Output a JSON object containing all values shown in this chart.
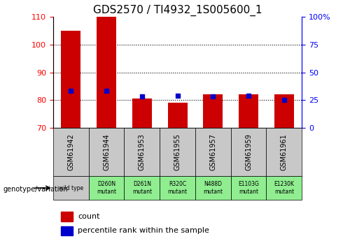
{
  "title": "GDS2570 / TI4932_1S005600_1",
  "samples": [
    "GSM61942",
    "GSM61944",
    "GSM61953",
    "GSM61955",
    "GSM61957",
    "GSM61959",
    "GSM61961"
  ],
  "counts": [
    105,
    110,
    80.5,
    79,
    82,
    82,
    82
  ],
  "percentile_ranks": [
    33,
    33,
    28,
    29,
    28,
    29,
    25
  ],
  "genotypes": [
    "wild type",
    "D260N\nmutant",
    "D261N\nmutant",
    "R320C\nmutant",
    "N488D\nmutant",
    "E1103G\nmutant",
    "E1230K\nmutant"
  ],
  "ylim_left": [
    70,
    110
  ],
  "ylim_right": [
    0,
    100
  ],
  "yticks_left": [
    70,
    80,
    90,
    100,
    110
  ],
  "yticks_right": [
    0,
    25,
    50,
    75,
    100
  ],
  "ytick_labels_right": [
    "0",
    "25",
    "50",
    "75",
    "100%"
  ],
  "bar_color": "#CC0000",
  "marker_color": "#0000CC",
  "grid_color": "#000000",
  "bg_color_wildtype": "#C8C8C8",
  "bg_color_mutant": "#90EE90",
  "title_fontsize": 11,
  "tick_fontsize": 8,
  "bar_width": 0.55
}
